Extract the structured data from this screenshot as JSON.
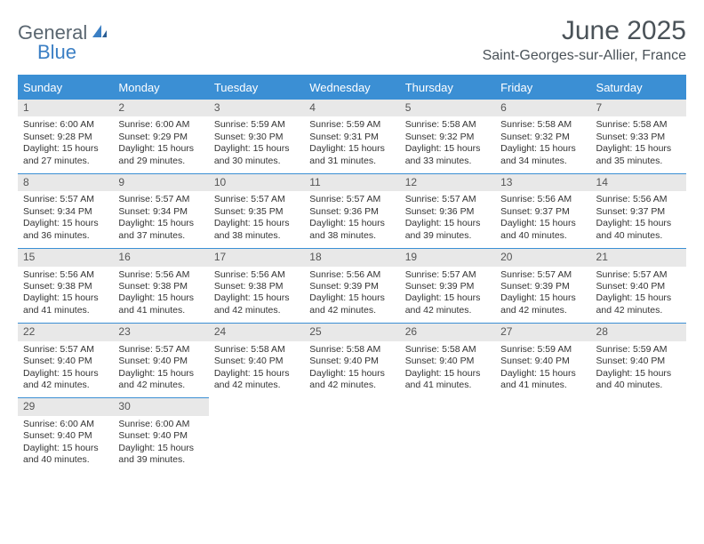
{
  "logo": {
    "part1": "General",
    "part2": "Blue"
  },
  "title": "June 2025",
  "location": "Saint-Georges-sur-Allier, France",
  "colors": {
    "header_bg": "#3b8fd4",
    "header_text": "#ffffff",
    "daynum_bg": "#e8e8e8",
    "daynum_text": "#555555",
    "body_text": "#333333",
    "border": "#3b8fd4",
    "title_text": "#4a5258",
    "logo_gray": "#5a6670",
    "logo_blue": "#3b7fc4"
  },
  "weekdays": [
    "Sunday",
    "Monday",
    "Tuesday",
    "Wednesday",
    "Thursday",
    "Friday",
    "Saturday"
  ],
  "days": [
    {
      "n": "1",
      "sr": "Sunrise: 6:00 AM",
      "ss": "Sunset: 9:28 PM",
      "d1": "Daylight: 15 hours",
      "d2": "and 27 minutes."
    },
    {
      "n": "2",
      "sr": "Sunrise: 6:00 AM",
      "ss": "Sunset: 9:29 PM",
      "d1": "Daylight: 15 hours",
      "d2": "and 29 minutes."
    },
    {
      "n": "3",
      "sr": "Sunrise: 5:59 AM",
      "ss": "Sunset: 9:30 PM",
      "d1": "Daylight: 15 hours",
      "d2": "and 30 minutes."
    },
    {
      "n": "4",
      "sr": "Sunrise: 5:59 AM",
      "ss": "Sunset: 9:31 PM",
      "d1": "Daylight: 15 hours",
      "d2": "and 31 minutes."
    },
    {
      "n": "5",
      "sr": "Sunrise: 5:58 AM",
      "ss": "Sunset: 9:32 PM",
      "d1": "Daylight: 15 hours",
      "d2": "and 33 minutes."
    },
    {
      "n": "6",
      "sr": "Sunrise: 5:58 AM",
      "ss": "Sunset: 9:32 PM",
      "d1": "Daylight: 15 hours",
      "d2": "and 34 minutes."
    },
    {
      "n": "7",
      "sr": "Sunrise: 5:58 AM",
      "ss": "Sunset: 9:33 PM",
      "d1": "Daylight: 15 hours",
      "d2": "and 35 minutes."
    },
    {
      "n": "8",
      "sr": "Sunrise: 5:57 AM",
      "ss": "Sunset: 9:34 PM",
      "d1": "Daylight: 15 hours",
      "d2": "and 36 minutes."
    },
    {
      "n": "9",
      "sr": "Sunrise: 5:57 AM",
      "ss": "Sunset: 9:34 PM",
      "d1": "Daylight: 15 hours",
      "d2": "and 37 minutes."
    },
    {
      "n": "10",
      "sr": "Sunrise: 5:57 AM",
      "ss": "Sunset: 9:35 PM",
      "d1": "Daylight: 15 hours",
      "d2": "and 38 minutes."
    },
    {
      "n": "11",
      "sr": "Sunrise: 5:57 AM",
      "ss": "Sunset: 9:36 PM",
      "d1": "Daylight: 15 hours",
      "d2": "and 38 minutes."
    },
    {
      "n": "12",
      "sr": "Sunrise: 5:57 AM",
      "ss": "Sunset: 9:36 PM",
      "d1": "Daylight: 15 hours",
      "d2": "and 39 minutes."
    },
    {
      "n": "13",
      "sr": "Sunrise: 5:56 AM",
      "ss": "Sunset: 9:37 PM",
      "d1": "Daylight: 15 hours",
      "d2": "and 40 minutes."
    },
    {
      "n": "14",
      "sr": "Sunrise: 5:56 AM",
      "ss": "Sunset: 9:37 PM",
      "d1": "Daylight: 15 hours",
      "d2": "and 40 minutes."
    },
    {
      "n": "15",
      "sr": "Sunrise: 5:56 AM",
      "ss": "Sunset: 9:38 PM",
      "d1": "Daylight: 15 hours",
      "d2": "and 41 minutes."
    },
    {
      "n": "16",
      "sr": "Sunrise: 5:56 AM",
      "ss": "Sunset: 9:38 PM",
      "d1": "Daylight: 15 hours",
      "d2": "and 41 minutes."
    },
    {
      "n": "17",
      "sr": "Sunrise: 5:56 AM",
      "ss": "Sunset: 9:38 PM",
      "d1": "Daylight: 15 hours",
      "d2": "and 42 minutes."
    },
    {
      "n": "18",
      "sr": "Sunrise: 5:56 AM",
      "ss": "Sunset: 9:39 PM",
      "d1": "Daylight: 15 hours",
      "d2": "and 42 minutes."
    },
    {
      "n": "19",
      "sr": "Sunrise: 5:57 AM",
      "ss": "Sunset: 9:39 PM",
      "d1": "Daylight: 15 hours",
      "d2": "and 42 minutes."
    },
    {
      "n": "20",
      "sr": "Sunrise: 5:57 AM",
      "ss": "Sunset: 9:39 PM",
      "d1": "Daylight: 15 hours",
      "d2": "and 42 minutes."
    },
    {
      "n": "21",
      "sr": "Sunrise: 5:57 AM",
      "ss": "Sunset: 9:40 PM",
      "d1": "Daylight: 15 hours",
      "d2": "and 42 minutes."
    },
    {
      "n": "22",
      "sr": "Sunrise: 5:57 AM",
      "ss": "Sunset: 9:40 PM",
      "d1": "Daylight: 15 hours",
      "d2": "and 42 minutes."
    },
    {
      "n": "23",
      "sr": "Sunrise: 5:57 AM",
      "ss": "Sunset: 9:40 PM",
      "d1": "Daylight: 15 hours",
      "d2": "and 42 minutes."
    },
    {
      "n": "24",
      "sr": "Sunrise: 5:58 AM",
      "ss": "Sunset: 9:40 PM",
      "d1": "Daylight: 15 hours",
      "d2": "and 42 minutes."
    },
    {
      "n": "25",
      "sr": "Sunrise: 5:58 AM",
      "ss": "Sunset: 9:40 PM",
      "d1": "Daylight: 15 hours",
      "d2": "and 42 minutes."
    },
    {
      "n": "26",
      "sr": "Sunrise: 5:58 AM",
      "ss": "Sunset: 9:40 PM",
      "d1": "Daylight: 15 hours",
      "d2": "and 41 minutes."
    },
    {
      "n": "27",
      "sr": "Sunrise: 5:59 AM",
      "ss": "Sunset: 9:40 PM",
      "d1": "Daylight: 15 hours",
      "d2": "and 41 minutes."
    },
    {
      "n": "28",
      "sr": "Sunrise: 5:59 AM",
      "ss": "Sunset: 9:40 PM",
      "d1": "Daylight: 15 hours",
      "d2": "and 40 minutes."
    },
    {
      "n": "29",
      "sr": "Sunrise: 6:00 AM",
      "ss": "Sunset: 9:40 PM",
      "d1": "Daylight: 15 hours",
      "d2": "and 40 minutes."
    },
    {
      "n": "30",
      "sr": "Sunrise: 6:00 AM",
      "ss": "Sunset: 9:40 PM",
      "d1": "Daylight: 15 hours",
      "d2": "and 39 minutes."
    }
  ]
}
